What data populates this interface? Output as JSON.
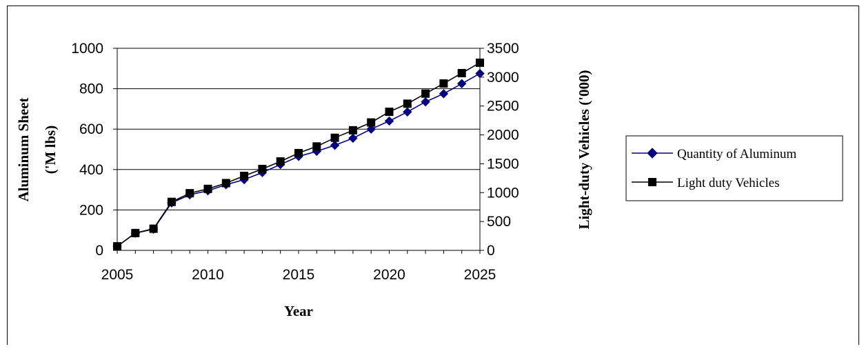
{
  "chart_data": {
    "type": "line",
    "xlabel": "Year",
    "ylabel_left": [
      "Aluminum Sheet",
      "('M lbs)"
    ],
    "ylabel_right": "Light-duty Vehicles ('000)",
    "xlim": [
      2005,
      2025
    ],
    "ylim_left": [
      0,
      1000
    ],
    "ylim_right": [
      0,
      3500
    ],
    "x_ticks": [
      2005,
      2010,
      2015,
      2020,
      2025
    ],
    "y_ticks_left": [
      0,
      200,
      400,
      600,
      800,
      1000
    ],
    "y_ticks_right": [
      0,
      500,
      1000,
      1500,
      2000,
      2500,
      3000,
      3500
    ],
    "grid": "horizontal",
    "legend_position": "right",
    "x": [
      2005,
      2006,
      2007,
      2008,
      2009,
      2010,
      2011,
      2012,
      2013,
      2014,
      2015,
      2016,
      2017,
      2018,
      2019,
      2020,
      2021,
      2022,
      2023,
      2024,
      2025
    ],
    "series": [
      {
        "name": "Quantity of Aluminum",
        "axis": "left",
        "color": "#000080",
        "marker": "diamond",
        "values": [
          20,
          85,
          105,
          235,
          275,
          295,
          325,
          350,
          385,
          425,
          465,
          490,
          520,
          555,
          600,
          640,
          685,
          735,
          775,
          825,
          875
        ]
      },
      {
        "name": "Light duty Vehicles",
        "axis": "right",
        "color": "#000000",
        "marker": "square",
        "values": [
          70,
          300,
          375,
          840,
          990,
          1065,
          1165,
          1290,
          1410,
          1540,
          1685,
          1800,
          1950,
          2080,
          2215,
          2400,
          2540,
          2715,
          2890,
          3070,
          3250
        ]
      }
    ]
  }
}
